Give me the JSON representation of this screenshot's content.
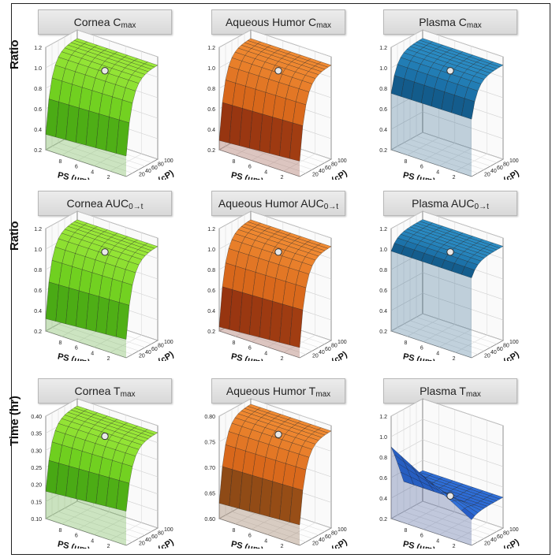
{
  "chart_data": [
    {
      "type": "surface",
      "title": "Cornea",
      "title_sub": "max",
      "title_prefix": "C",
      "ylabel": "Ratio",
      "xlabel": "PS (μm)",
      "zlabel": "Vis (cP)",
      "x_ticks": [
        "8",
        "6",
        "4",
        "2"
      ],
      "z_ticks": [
        "20",
        "40",
        "60",
        "80",
        "100"
      ],
      "y_ticks": [
        "0.2",
        "0.4",
        "0.6",
        "0.8",
        "1.0",
        "1.2"
      ],
      "ylim": [
        0.2,
        1.2
      ],
      "surface": {
        "low": 0.4,
        "high": 1.12,
        "ps_effect": 0.05
      },
      "marker": {
        "vis": 60,
        "ps": 5,
        "value": 1.0
      },
      "colors": {
        "light": "#9be83a",
        "mid": "#6fcf1f",
        "dark": "#3a9a10"
      }
    },
    {
      "type": "surface",
      "title": "Aqueous Humor",
      "title_sub": "max",
      "title_prefix": "C",
      "ylabel": "",
      "xlabel": "PS (μm)",
      "zlabel": "Vis (cP)",
      "x_ticks": [
        "8",
        "6",
        "4",
        "2"
      ],
      "z_ticks": [
        "20",
        "40",
        "60",
        "80",
        "100"
      ],
      "y_ticks": [
        "0.2",
        "0.4",
        "0.6",
        "0.8",
        "1.0",
        "1.2"
      ],
      "ylim": [
        0.2,
        1.2
      ],
      "surface": {
        "low": 0.35,
        "high": 1.12,
        "ps_effect": 0.06
      },
      "marker": {
        "vis": 60,
        "ps": 5,
        "value": 1.0
      },
      "colors": {
        "light": "#f08a32",
        "mid": "#d7661a",
        "dark": "#7a1f0c"
      }
    },
    {
      "type": "surface",
      "title": "Plasma",
      "title_sub": "max",
      "title_prefix": "C",
      "ylabel": "",
      "xlabel": "PS (μm)",
      "zlabel": "Vis (cP)",
      "x_ticks": [
        "8",
        "6",
        "4",
        "2"
      ],
      "z_ticks": [
        "20",
        "40",
        "60",
        "80",
        "100"
      ],
      "y_ticks": [
        "0.2",
        "0.4",
        "0.6",
        "0.8",
        "1.0",
        "1.2"
      ],
      "ylim": [
        0.2,
        1.2
      ],
      "surface": {
        "low": 0.76,
        "high": 1.12,
        "ps_effect": 0.01
      },
      "marker": {
        "vis": 60,
        "ps": 5,
        "value": 1.0
      },
      "colors": {
        "light": "#2b8cc4",
        "mid": "#1a6fa6",
        "dark": "#0f4f7a"
      }
    },
    {
      "type": "surface",
      "title": "Cornea",
      "title_sub": "0→t",
      "title_prefix": "AUC",
      "ylabel": "Ratio",
      "xlabel": "PS (μm)",
      "zlabel": "Vis (cP)",
      "x_ticks": [
        "8",
        "6",
        "4",
        "2"
      ],
      "z_ticks": [
        "20",
        "40",
        "60",
        "80",
        "100"
      ],
      "y_ticks": [
        "0.2",
        "0.4",
        "0.6",
        "0.8",
        "1.0",
        "1.2"
      ],
      "ylim": [
        0.2,
        1.2
      ],
      "surface": {
        "low": 0.38,
        "high": 1.12,
        "ps_effect": 0.06
      },
      "marker": {
        "vis": 60,
        "ps": 5,
        "value": 1.0
      },
      "colors": {
        "light": "#9be83a",
        "mid": "#6fcf1f",
        "dark": "#3a9a10"
      }
    },
    {
      "type": "surface",
      "title": "Aqueous Humor",
      "title_sub": "0→t",
      "title_prefix": "AUC",
      "ylabel": "",
      "xlabel": "PS (μm)",
      "zlabel": "Vis (cP)",
      "x_ticks": [
        "8",
        "6",
        "4",
        "2"
      ],
      "z_ticks": [
        "20",
        "40",
        "60",
        "80",
        "100"
      ],
      "y_ticks": [
        "0.2",
        "0.4",
        "0.6",
        "0.8",
        "1.0",
        "1.2"
      ],
      "ylim": [
        0.2,
        1.2
      ],
      "surface": {
        "low": 0.3,
        "high": 1.12,
        "ps_effect": 0.06
      },
      "marker": {
        "vis": 60,
        "ps": 5,
        "value": 1.0
      },
      "colors": {
        "light": "#f08a32",
        "mid": "#d7661a",
        "dark": "#7a1f0c"
      }
    },
    {
      "type": "surface",
      "title": "Plasma",
      "title_sub": "0→t",
      "title_prefix": "AUC",
      "ylabel": "",
      "xlabel": "PS (μm)",
      "zlabel": "Vis (cP)",
      "x_ticks": [
        "8",
        "6",
        "4",
        "2"
      ],
      "z_ticks": [
        "20",
        "40",
        "60",
        "80",
        "100"
      ],
      "y_ticks": [
        "0.2",
        "0.4",
        "0.6",
        "0.8",
        "1.0",
        "1.2"
      ],
      "ylim": [
        0.2,
        1.2
      ],
      "surface": {
        "low": 0.98,
        "high": 1.12,
        "ps_effect": 0.0
      },
      "marker": {
        "vis": 60,
        "ps": 5,
        "value": 1.0
      },
      "colors": {
        "light": "#2b8cc4",
        "mid": "#1a6fa6",
        "dark": "#0f4f7a"
      }
    },
    {
      "type": "surface",
      "title": "Cornea",
      "title_sub": "max",
      "title_prefix": "T",
      "ylabel": "Time (hr)",
      "xlabel": "PS (μm)",
      "zlabel": "Vis (cP)",
      "x_ticks": [
        "8",
        "6",
        "4",
        "2"
      ],
      "z_ticks": [
        "20",
        "40",
        "60",
        "80",
        "100"
      ],
      "y_ticks": [
        "0.10",
        "0.15",
        "0.20",
        "0.25",
        "0.30",
        "0.35",
        "0.40"
      ],
      "ylim": [
        0.1,
        0.4
      ],
      "surface": {
        "low": 0.2,
        "high": 0.38,
        "ps_effect": 0.02
      },
      "marker": {
        "vis": 60,
        "ps": 5,
        "value": 0.35
      },
      "colors": {
        "light": "#9be83a",
        "mid": "#6fcf1f",
        "dark": "#3a9a10"
      }
    },
    {
      "type": "surface",
      "title": "Aqueous Humor",
      "title_sub": "max",
      "title_prefix": "T",
      "ylabel": "",
      "xlabel": "PS (μm)",
      "zlabel": "Vis (cP)",
      "x_ticks": [
        "8",
        "6",
        "4",
        "2"
      ],
      "z_ticks": [
        "20",
        "40",
        "60",
        "80",
        "100"
      ],
      "y_ticks": [
        "0.60",
        "0.65",
        "0.70",
        "0.75",
        "0.80"
      ],
      "ylim": [
        0.6,
        0.8
      ],
      "surface": {
        "low": 0.64,
        "high": 0.79,
        "ps_effect": 0.01
      },
      "marker": {
        "vis": 60,
        "ps": 5,
        "value": 0.77
      },
      "colors": {
        "light": "#f08a32",
        "mid": "#d7661a",
        "dark": "#6a3c14"
      }
    },
    {
      "type": "surface",
      "title": "Plasma",
      "title_sub": "max",
      "title_prefix": "T",
      "ylabel": "",
      "xlabel": "PS (μm)",
      "zlabel": "Vis (cP)",
      "x_ticks": [
        "8",
        "6",
        "4",
        "2"
      ],
      "z_ticks": [
        "20",
        "40",
        "60",
        "80",
        "100"
      ],
      "y_ticks": [
        "0.2",
        "0.4",
        "0.6",
        "0.8",
        "1.0",
        "1.2"
      ],
      "ylim": [
        0.2,
        1.2
      ],
      "surface": {
        "low": 0.45,
        "high": 0.5,
        "ps_effect": 0.0,
        "spike": 0.95
      },
      "marker": {
        "vis": 60,
        "ps": 5,
        "value": 0.45
      },
      "colors": {
        "light": "#2f6fd8",
        "mid": "#1c45b0",
        "dark": "#0f2a7a"
      }
    }
  ]
}
